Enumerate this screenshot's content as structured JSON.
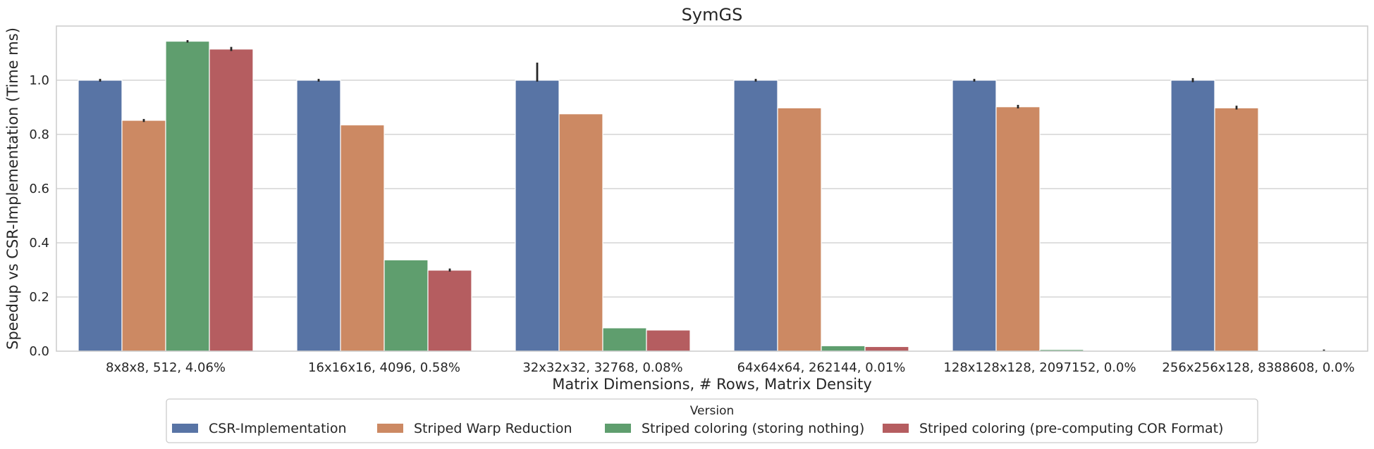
{
  "chart_data": {
    "type": "bar",
    "title": "SymGS",
    "xlabel": "Matrix Dimensions, # Rows, Matrix Density",
    "ylabel": "Speedup vs CSR-Implementation (Time ms)",
    "ylim": [
      0,
      1.2
    ],
    "yticks": [
      "0.0",
      "0.2",
      "0.4",
      "0.6",
      "0.8",
      "1.0"
    ],
    "grid": true,
    "legend": {
      "title": "Version",
      "placement": "bottom-center"
    },
    "categories": [
      "8x8x8, 512, 4.06%",
      "16x16x16, 4096, 0.58%",
      "32x32x32, 32768, 0.08%",
      "64x64x64, 262144, 0.01%",
      "128x128x128, 2097152, 0.0%",
      "256x256x128, 8388608, 0.0%"
    ],
    "series": [
      {
        "name": "CSR-Implementation",
        "color": "#5874a5",
        "values": [
          1.0,
          1.0,
          1.0,
          1.0,
          1.0,
          1.0
        ],
        "error": [
          [
            0.995,
            1.005
          ],
          [
            0.995,
            1.005
          ],
          [
            0.995,
            1.065
          ],
          [
            0.995,
            1.005
          ],
          [
            0.995,
            1.005
          ],
          [
            0.993,
            1.008
          ]
        ]
      },
      {
        "name": "Striped Warp Reduction",
        "color": "#cc8963",
        "values": [
          0.852,
          0.835,
          0.876,
          0.898,
          0.902,
          0.898
        ],
        "error": [
          [
            0.846,
            0.857
          ],
          null,
          null,
          null,
          [
            0.896,
            0.909
          ],
          [
            0.892,
            0.906
          ]
        ]
      },
      {
        "name": "Striped coloring (storing nothing)",
        "color": "#5f9e6e",
        "values": [
          1.144,
          0.337,
          0.086,
          0.02,
          0.006,
          0.0015
        ],
        "error": [
          [
            1.139,
            1.148
          ],
          null,
          null,
          null,
          null,
          null
        ]
      },
      {
        "name": "Striped coloring (pre-computing COR Format)",
        "color": "#b55d60",
        "values": [
          1.115,
          0.299,
          0.078,
          0.017,
          0.002,
          0.0
        ],
        "error": [
          [
            1.108,
            1.123
          ],
          [
            0.294,
            0.305
          ],
          null,
          null,
          null,
          [
            0.0,
            0.006
          ]
        ]
      }
    ]
  }
}
